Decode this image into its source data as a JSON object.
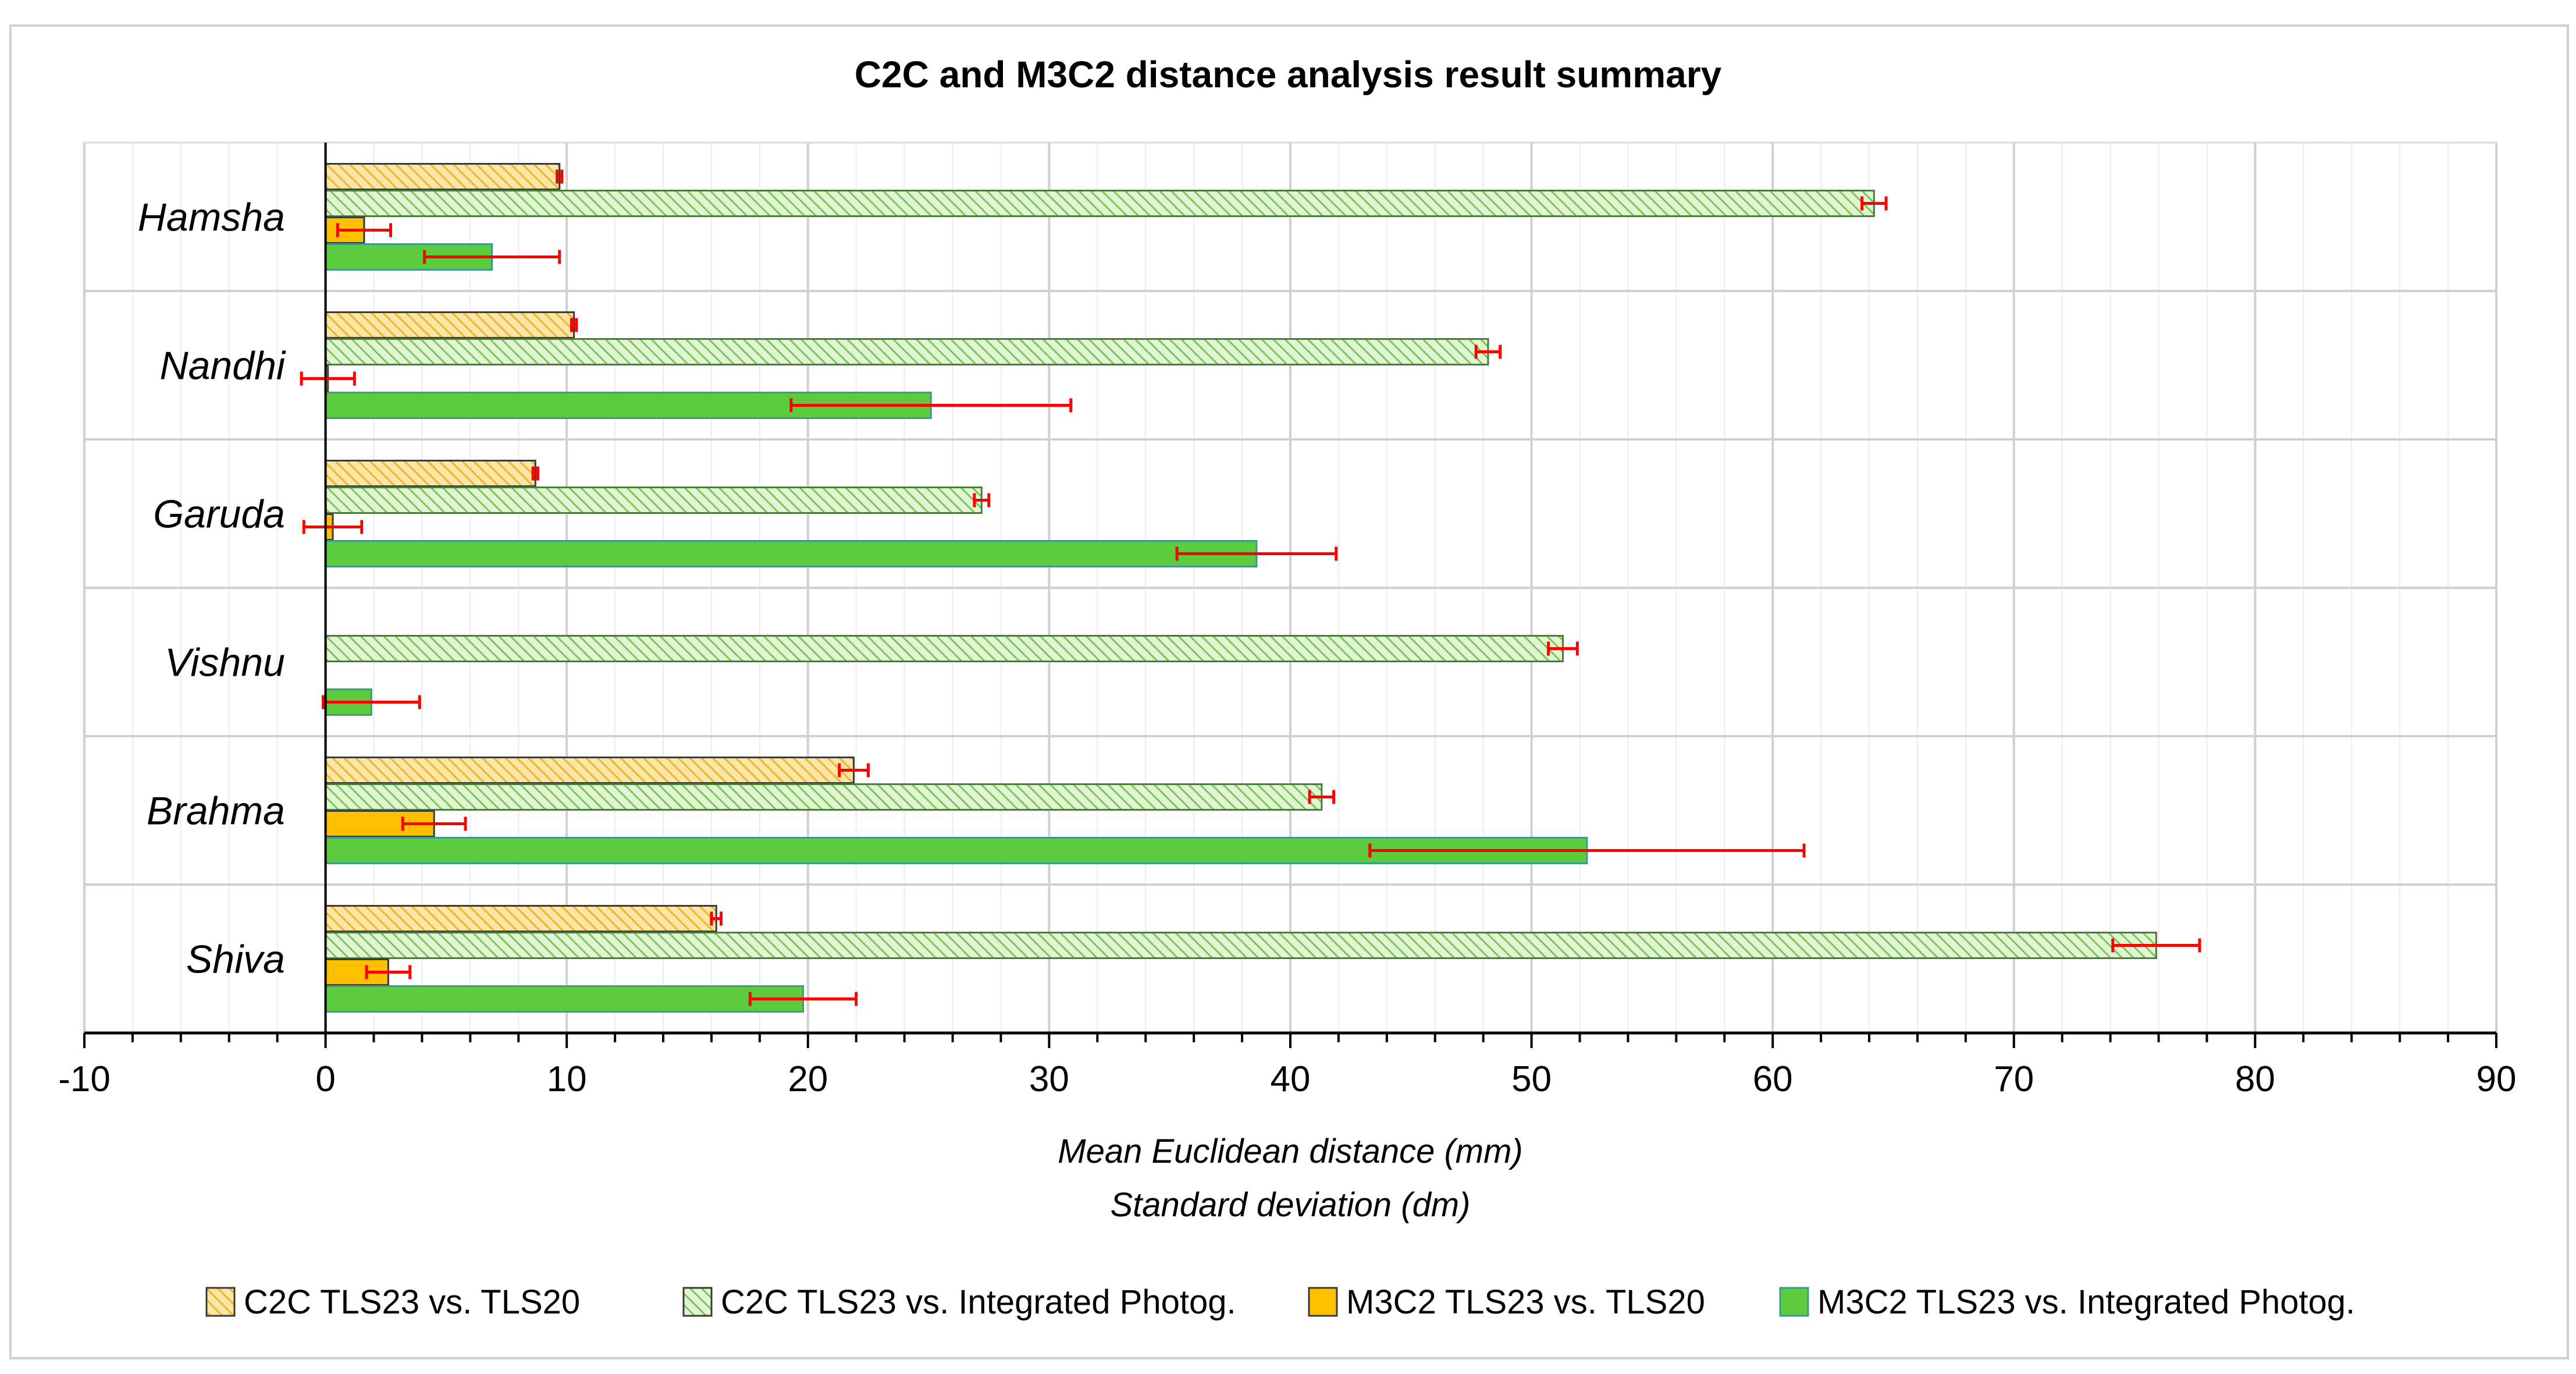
{
  "chart_data": {
    "type": "bar",
    "orientation": "horizontal",
    "title": "C2C and M3C2 distance analysis result summary",
    "xlabel": "Mean Euclidean distance (mm)",
    "xlabel2": "Standard deviation (dm)",
    "xlim": [
      -10,
      90
    ],
    "xticks": [
      "-10",
      "0",
      "10",
      "20",
      "30",
      "40",
      "50",
      "60",
      "70",
      "80",
      "90"
    ],
    "categories": [
      "Hamsha",
      "Nandhi",
      "Garuda",
      "Vishnu",
      "Brahma",
      "Shiva"
    ],
    "legend_position": "bottom",
    "series": [
      {
        "name": "C2C TLS23 vs. TLS20",
        "values": [
          9.7,
          10.3,
          8.7,
          null,
          21.9,
          16.2
        ],
        "errors": [
          0.1,
          0.1,
          0.1,
          null,
          0.6,
          0.2
        ],
        "color": "#F5C242",
        "pattern": "hatch-yellow"
      },
      {
        "name": "C2C TLS23 vs. Integrated Photog.",
        "values": [
          64.2,
          48.2,
          27.2,
          51.3,
          41.3,
          75.9
        ],
        "errors": [
          0.5,
          0.5,
          0.3,
          0.6,
          0.5,
          1.8
        ],
        "color": "#8FD16A",
        "pattern": "hatch-green"
      },
      {
        "name": "M3C2 TLS23 vs. TLS20",
        "values": [
          1.6,
          0.1,
          0.3,
          null,
          4.5,
          2.6
        ],
        "errors": [
          1.1,
          1.1,
          1.2,
          null,
          1.3,
          0.9
        ],
        "color": "#FFC000",
        "pattern": "solid"
      },
      {
        "name": "M3C2 TLS23 vs. Integrated Photog.",
        "values": [
          6.9,
          25.1,
          38.6,
          1.9,
          52.3,
          19.8
        ],
        "errors": [
          2.8,
          5.8,
          3.3,
          2.0,
          9.0,
          2.2
        ],
        "color": "#5CCB3E",
        "pattern": "solid"
      }
    ]
  }
}
